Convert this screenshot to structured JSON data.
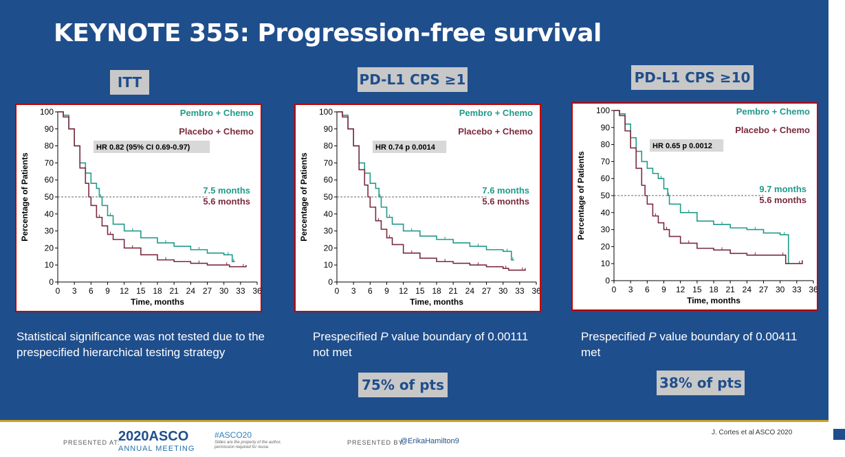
{
  "slide": {
    "title": "KEYNOTE 355: Progression-free survival",
    "footer": {
      "presented_at": "PRESENTED AT:",
      "asco_year": "2020ASCO",
      "asco_sub": "ANNUAL MEETING",
      "hashtag": "#ASCO20",
      "permission": "Slides are the property of the author, permission required for reuse.",
      "presented_by": "PRESENTED BY:",
      "handle": "@ErikaHamilton9",
      "credit": "J. Cortes et al ASCO 2020"
    },
    "colors": {
      "background": "#1f4e8c",
      "pembro": "#1f9a8a",
      "placebo": "#7a2a3e",
      "panel_border": "#c00000",
      "label_box": "#c8c8c8"
    }
  },
  "panels": [
    {
      "label": "ITT",
      "hr_text": "HR 0.82 (95% CI 0.69-0.97)",
      "pembro_median": "7.5 months",
      "placebo_median": "5.6 months",
      "note": "Statistical significance was not tested due to the prespecified hierarchical testing strategy",
      "badge": ""
    },
    {
      "label": "PD-L1 CPS ≥1",
      "hr_text": "HR 0.74 p 0.0014",
      "pembro_median": "7.6 months",
      "placebo_median": "5.6 months",
      "note_pre": "Prespecified ",
      "note_italic": "P",
      "note_post": " value boundary of 0.00111 not met",
      "badge": "75% of pts"
    },
    {
      "label": "PD-L1 CPS ≥10",
      "hr_text": "HR 0.65 p 0.0012",
      "pembro_median": "9.7 months",
      "placebo_median": "5.6 months",
      "note_pre": "Prespecified ",
      "note_italic": "P",
      "note_post": " value boundary of 0.00411 met",
      "badge": "38% of pts"
    }
  ],
  "chart_data": [
    {
      "type": "line",
      "title": "ITT",
      "xlabel": "Time, months",
      "ylabel": "Percentage of Patients",
      "xlim": [
        0,
        36
      ],
      "ylim": [
        0,
        100
      ],
      "xticks": [
        0,
        3,
        6,
        9,
        12,
        15,
        18,
        21,
        24,
        27,
        30,
        33,
        36
      ],
      "yticks": [
        0,
        10,
        20,
        30,
        40,
        50,
        60,
        70,
        80,
        90,
        100
      ],
      "reference_line_y": 50,
      "legend": [
        "Pembro + Chemo",
        "Placebo + Chemo"
      ],
      "annotations": [
        "HR 0.82 (95% CI 0.69-0.97)",
        "7.5 months",
        "5.6 months"
      ],
      "series": [
        {
          "name": "Pembro + Chemo",
          "x": [
            0,
            1,
            2,
            3,
            4,
            5,
            6,
            7,
            7.5,
            8,
            9,
            10,
            12,
            15,
            18,
            21,
            24,
            27,
            30,
            31.5,
            31.5,
            32
          ],
          "y": [
            100,
            98,
            90,
            80,
            70,
            64,
            58,
            55,
            50,
            45,
            39,
            34,
            30,
            26,
            23,
            21,
            19,
            17,
            16,
            16,
            12,
            12
          ]
        },
        {
          "name": "Placebo + Chemo",
          "x": [
            0,
            1,
            2,
            3,
            4,
            5,
            5.6,
            6,
            7,
            8,
            9,
            10,
            12,
            15,
            18,
            21,
            24,
            27,
            30,
            31,
            33,
            34
          ],
          "y": [
            100,
            97,
            90,
            80,
            67,
            58,
            50,
            45,
            38,
            33,
            28,
            25,
            20,
            16,
            13,
            12,
            11,
            10,
            10,
            9,
            9,
            10
          ]
        }
      ]
    },
    {
      "type": "line",
      "title": "PD-L1 CPS ≥1",
      "xlabel": "Time, months",
      "ylabel": "Percentage of Patients",
      "xlim": [
        0,
        36
      ],
      "ylim": [
        0,
        100
      ],
      "xticks": [
        0,
        3,
        6,
        9,
        12,
        15,
        18,
        21,
        24,
        27,
        30,
        33,
        36
      ],
      "yticks": [
        0,
        10,
        20,
        30,
        40,
        50,
        60,
        70,
        80,
        90,
        100
      ],
      "reference_line_y": 50,
      "legend": [
        "Pembro + Chemo",
        "Placebo + Chemo"
      ],
      "annotations": [
        "HR 0.74 p 0.0014",
        "7.6 months",
        "5.6 months"
      ],
      "series": [
        {
          "name": "Pembro + Chemo",
          "x": [
            0,
            1,
            2,
            3,
            4,
            5,
            6,
            7,
            7.6,
            8,
            9,
            10,
            12,
            15,
            18,
            21,
            24,
            27,
            30,
            31.5,
            31.5,
            32
          ],
          "y": [
            100,
            98,
            90,
            80,
            70,
            64,
            58,
            55,
            50,
            44,
            38,
            34,
            30,
            27,
            25,
            23,
            21,
            19,
            18,
            18,
            13,
            13
          ]
        },
        {
          "name": "Placebo + Chemo",
          "x": [
            0,
            1,
            2,
            3,
            4,
            5,
            5.6,
            6,
            7,
            8,
            9,
            10,
            12,
            15,
            18,
            21,
            24,
            27,
            30,
            31,
            33,
            34
          ],
          "y": [
            100,
            97,
            90,
            80,
            66,
            57,
            50,
            44,
            36,
            31,
            26,
            22,
            17,
            14,
            12,
            11,
            10,
            9,
            8,
            7,
            7,
            8
          ]
        }
      ]
    },
    {
      "type": "line",
      "title": "PD-L1 CPS ≥10",
      "xlabel": "Time, months",
      "ylabel": "Percentage of Patients",
      "xlim": [
        0,
        36
      ],
      "ylim": [
        0,
        100
      ],
      "xticks": [
        0,
        3,
        6,
        9,
        12,
        15,
        18,
        21,
        24,
        27,
        30,
        33,
        36
      ],
      "yticks": [
        0,
        10,
        20,
        30,
        40,
        50,
        60,
        70,
        80,
        90,
        100
      ],
      "reference_line_y": 50,
      "legend": [
        "Pembro + Chemo",
        "Placebo + Chemo"
      ],
      "annotations": [
        "HR 0.65 p 0.0012",
        "9.7 months",
        "5.6 months"
      ],
      "series": [
        {
          "name": "Pembro + Chemo",
          "x": [
            0,
            1,
            2,
            3,
            4,
            5,
            6,
            7,
            8,
            9,
            9.7,
            10,
            12,
            15,
            18,
            21,
            24,
            27,
            30,
            31.5,
            31.5
          ],
          "y": [
            100,
            98,
            92,
            84,
            76,
            70,
            66,
            63,
            60,
            54,
            50,
            45,
            40,
            35,
            33,
            31,
            30,
            28,
            27,
            25,
            10
          ]
        },
        {
          "name": "Placebo + Chemo",
          "x": [
            0,
            1,
            2,
            3,
            4,
            5,
            5.6,
            6,
            7,
            8,
            9,
            10,
            12,
            15,
            18,
            21,
            24,
            27,
            30,
            31,
            33,
            34
          ],
          "y": [
            100,
            97,
            88,
            78,
            66,
            56,
            50,
            45,
            38,
            34,
            30,
            26,
            22,
            19,
            18,
            16,
            15,
            15,
            15,
            10,
            10,
            12
          ]
        }
      ]
    }
  ]
}
